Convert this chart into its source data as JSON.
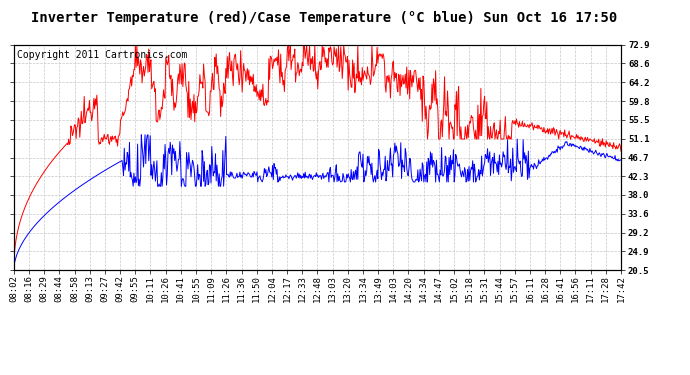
{
  "title": "Inverter Temperature (red)/Case Temperature (°C blue) Sun Oct 16 17:50",
  "copyright": "Copyright 2011 Cartronics.com",
  "ylabel_right": [
    "20.5",
    "24.9",
    "29.2",
    "33.6",
    "38.0",
    "42.3",
    "46.7",
    "51.1",
    "55.5",
    "59.8",
    "64.2",
    "68.6",
    "72.9"
  ],
  "ytick_values": [
    20.5,
    24.9,
    29.2,
    33.6,
    38.0,
    42.3,
    46.7,
    51.1,
    55.5,
    59.8,
    64.2,
    68.6,
    72.9
  ],
  "ymin": 20.5,
  "ymax": 72.9,
  "background_color": "#ffffff",
  "plot_bg_color": "#ffffff",
  "grid_color": "#c8c8c8",
  "red_color": "#ff0000",
  "blue_color": "#0000ff",
  "title_fontsize": 10,
  "tick_fontsize": 6.5,
  "copyright_fontsize": 7,
  "time_labels": [
    "08:02",
    "08:16",
    "08:29",
    "08:44",
    "08:58",
    "09:13",
    "09:27",
    "09:42",
    "09:55",
    "10:11",
    "10:26",
    "10:41",
    "10:55",
    "11:09",
    "11:26",
    "11:36",
    "11:50",
    "12:04",
    "12:17",
    "12:33",
    "12:48",
    "13:03",
    "13:20",
    "13:34",
    "13:49",
    "14:03",
    "14:20",
    "14:34",
    "14:47",
    "15:02",
    "15:18",
    "15:31",
    "15:44",
    "15:57",
    "16:11",
    "16:28",
    "16:41",
    "16:56",
    "17:11",
    "17:28",
    "17:42"
  ]
}
